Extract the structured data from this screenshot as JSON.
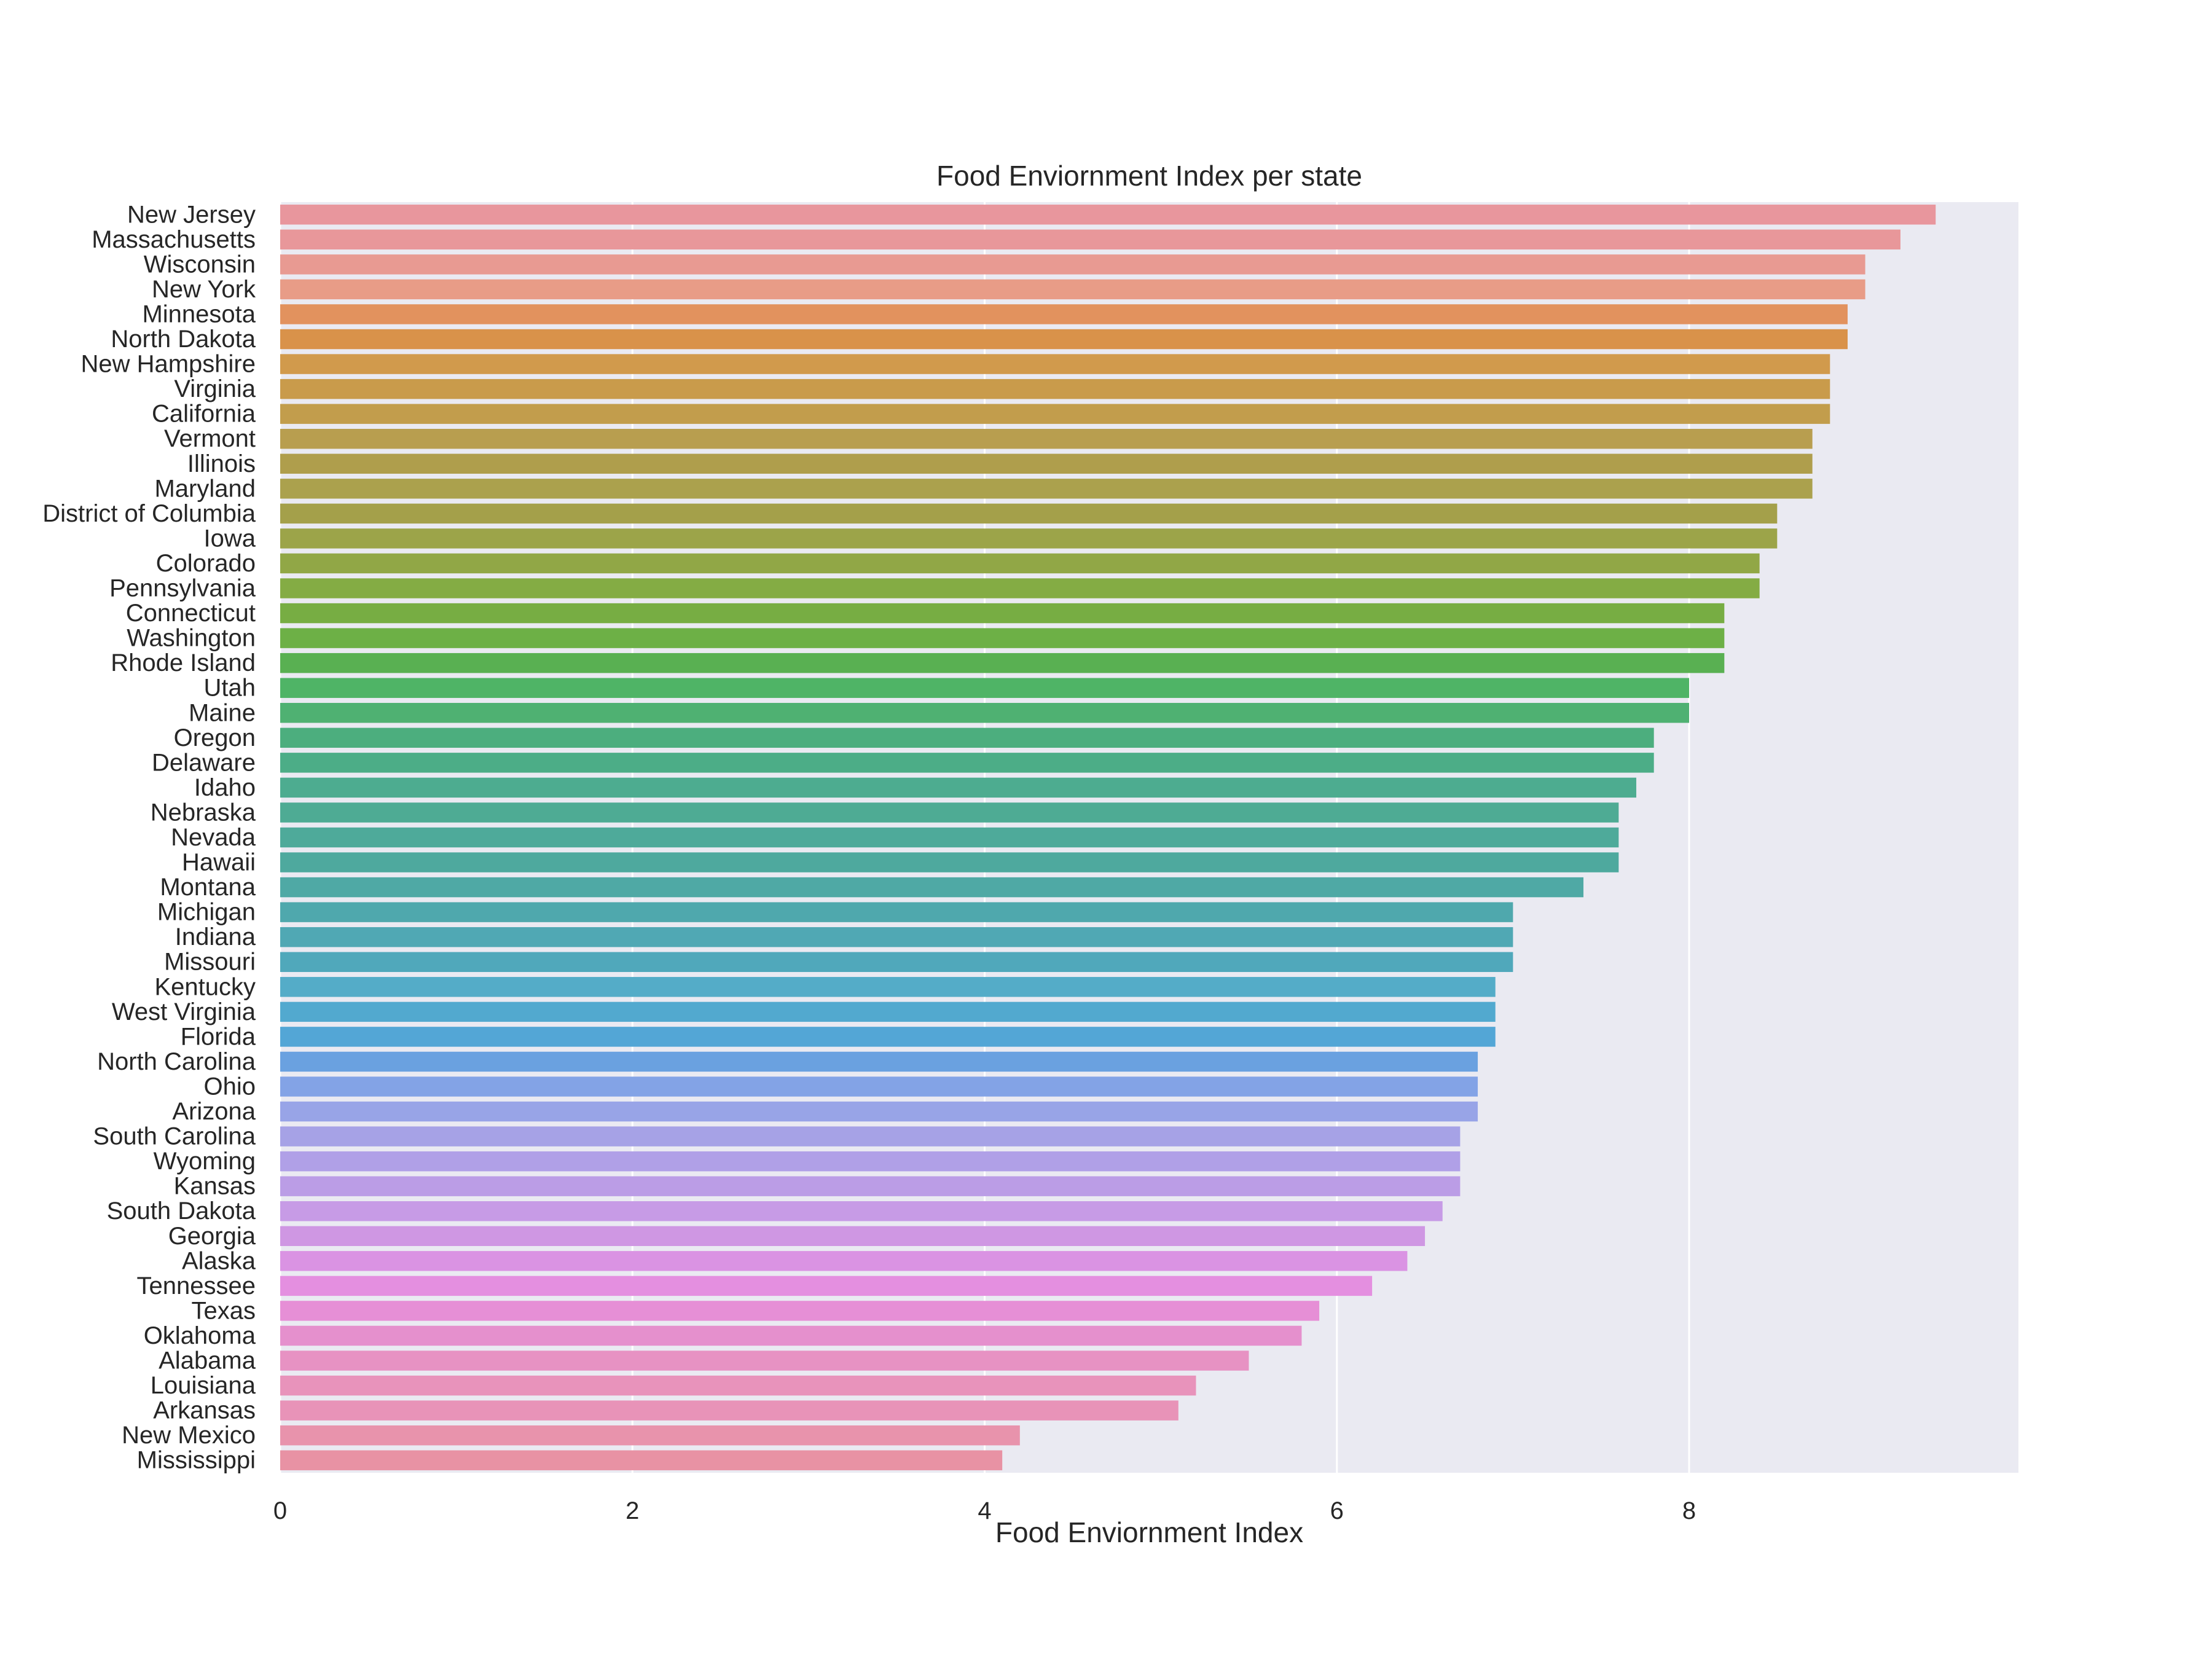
{
  "chart_data": {
    "type": "bar",
    "orientation": "horizontal",
    "title": "Food Enviornment Index per state",
    "xlabel": "Food Enviornment Index",
    "ylabel": "",
    "xlim": [
      0,
      9.87
    ],
    "xticks": [
      0,
      2,
      4,
      6,
      8
    ],
    "grid": true,
    "legend": "none",
    "background": "#eaeaf2",
    "categories": [
      "New Jersey",
      "Massachusetts",
      "Wisconsin",
      "New York",
      "Minnesota",
      "North Dakota",
      "New Hampshire",
      "Virginia",
      "California",
      "Vermont",
      "Illinois",
      "Maryland",
      "District of Columbia",
      "Iowa",
      "Colorado",
      "Pennsylvania",
      "Connecticut",
      "Washington",
      "Rhode Island",
      "Utah",
      "Maine",
      "Oregon",
      "Delaware",
      "Idaho",
      "Nebraska",
      "Nevada",
      "Hawaii",
      "Montana",
      "Michigan",
      "Indiana",
      "Missouri",
      "Kentucky",
      "West Virginia",
      "Florida",
      "North Carolina",
      "Ohio",
      "Arizona",
      "South Carolina",
      "Wyoming",
      "Kansas",
      "South Dakota",
      "Georgia",
      "Alaska",
      "Tennessee",
      "Texas",
      "Oklahoma",
      "Alabama",
      "Louisiana",
      "Arkansas",
      "New Mexico",
      "Mississippi"
    ],
    "values": [
      9.4,
      9.2,
      9.0,
      9.0,
      8.9,
      8.9,
      8.8,
      8.8,
      8.8,
      8.7,
      8.7,
      8.7,
      8.5,
      8.5,
      8.4,
      8.4,
      8.2,
      8.2,
      8.2,
      8.0,
      8.0,
      7.8,
      7.8,
      7.7,
      7.6,
      7.6,
      7.6,
      7.4,
      7.0,
      7.0,
      7.0,
      6.9,
      6.9,
      6.9,
      6.8,
      6.8,
      6.8,
      6.7,
      6.7,
      6.7,
      6.6,
      6.5,
      6.4,
      6.2,
      5.9,
      5.8,
      5.5,
      5.2,
      5.1,
      4.2,
      4.1
    ],
    "colors": [
      "#e8969d",
      "#e8979a",
      "#e89a92",
      "#e89c87",
      "#e2925e",
      "#d9924a",
      "#d19a4c",
      "#c99b4b",
      "#c29d4c",
      "#b89e4f",
      "#af9e4c",
      "#aba14d",
      "#a4a04a",
      "#9ca449",
      "#91a746",
      "#84ac44",
      "#77ad43",
      "#6db046",
      "#59b052",
      "#4fb466",
      "#4fb172",
      "#4cae7e",
      "#4cad87",
      "#4dac90",
      "#4eab94",
      "#4eaa9a",
      "#4ea99e",
      "#4fa9a5",
      "#4fa8ad",
      "#50a8b4",
      "#50a8bb",
      "#54acc8",
      "#52a9cf",
      "#53a6d6",
      "#6aa1e0",
      "#83a3e6",
      "#98a4e7",
      "#a6a2e6",
      "#b0a0e7",
      "#bb9de6",
      "#c79be6",
      "#cf97e3",
      "#da93e3",
      "#e48fe0",
      "#e68fd6",
      "#e590cd",
      "#e792c3",
      "#e893bb",
      "#e893b8",
      "#e893ac",
      "#e892a4"
    ]
  }
}
